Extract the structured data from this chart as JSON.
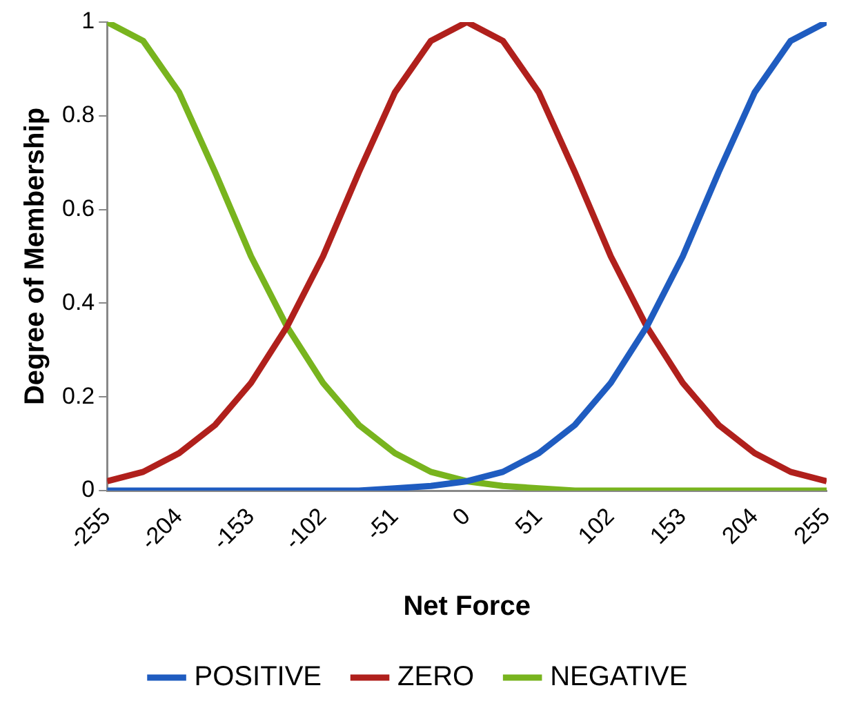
{
  "chart_data": {
    "type": "line",
    "xlabel": "Net Force",
    "ylabel": "Degree of Membership",
    "x": [
      -255,
      -229.5,
      -204,
      -178.5,
      -153,
      -127.5,
      -102,
      -76.5,
      -51,
      -25.5,
      0,
      25.5,
      51,
      76.5,
      102,
      127.5,
      153,
      178.5,
      204,
      229.5,
      255
    ],
    "series": [
      {
        "name": "POSITIVE",
        "color": "#1f5cc0",
        "values": [
          0,
          0,
          0,
          0,
          0,
          0,
          0,
          0,
          0.005,
          0.01,
          0.02,
          0.04,
          0.08,
          0.14,
          0.23,
          0.35,
          0.5,
          0.68,
          0.85,
          0.96,
          1
        ]
      },
      {
        "name": "ZERO",
        "color": "#b0201c",
        "values": [
          0.02,
          0.04,
          0.08,
          0.14,
          0.23,
          0.35,
          0.5,
          0.68,
          0.85,
          0.96,
          1,
          0.96,
          0.85,
          0.68,
          0.5,
          0.35,
          0.23,
          0.14,
          0.08,
          0.04,
          0.02
        ]
      },
      {
        "name": "NEGATIVE",
        "color": "#78b41e",
        "values": [
          1,
          0.96,
          0.85,
          0.68,
          0.5,
          0.35,
          0.23,
          0.14,
          0.08,
          0.04,
          0.02,
          0.01,
          0.005,
          0,
          0,
          0,
          0,
          0,
          0,
          0,
          0
        ]
      }
    ],
    "xlim": [
      -255,
      255
    ],
    "xticks": [
      -255,
      -204,
      -153,
      -102,
      -51,
      0,
      51,
      102,
      153,
      204,
      255
    ],
    "ylim": [
      0,
      1
    ],
    "yticks": [
      0,
      0.2,
      0.4,
      0.6,
      0.8,
      1
    ],
    "grid": false,
    "legend": "bottom",
    "marker": "none",
    "line_style": "solid"
  }
}
